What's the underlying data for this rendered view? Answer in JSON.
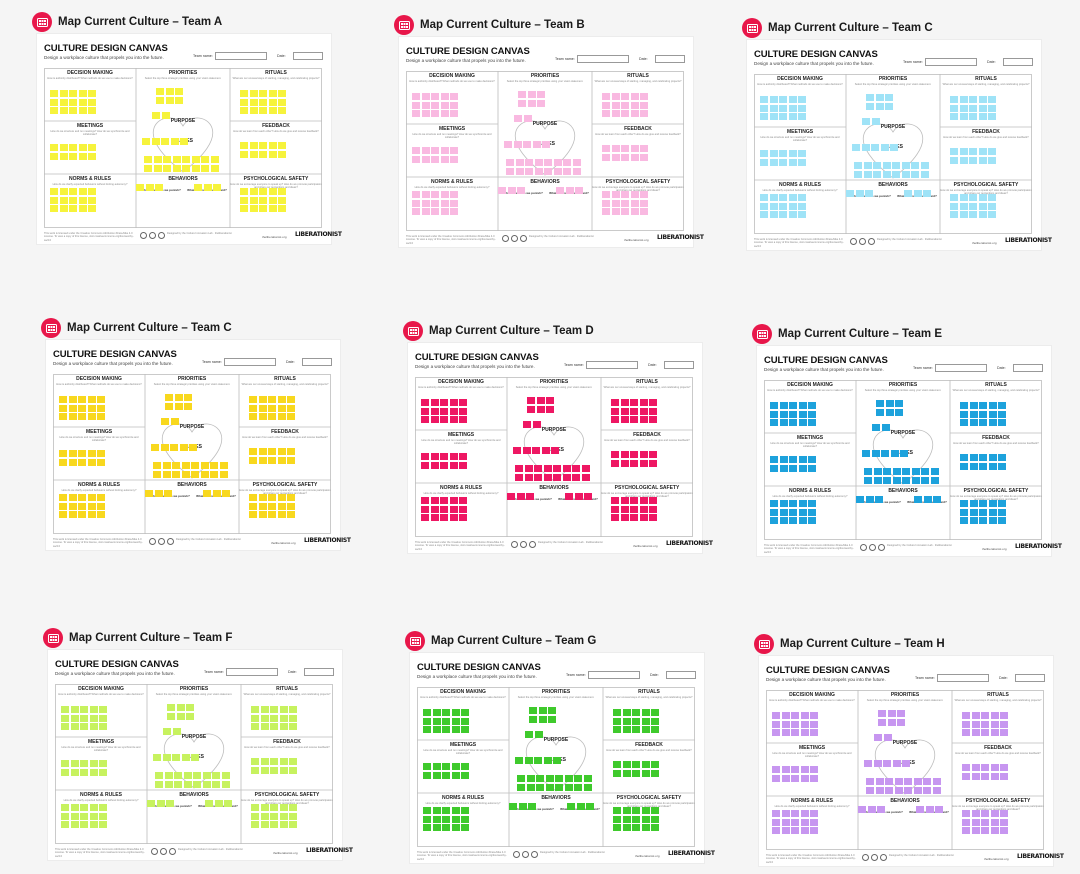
{
  "canvas_template": {
    "title": "CULTURE DESIGN CANVAS",
    "subtitle": "Design a workplace culture that propels you into the future.",
    "team_name_label": "Team name:",
    "date_label": "Date:",
    "sections": {
      "decision_making": {
        "title": "DECISION MAKING",
        "hint": "How is authority distributed? What methods do we use to make decisions?"
      },
      "priorities": {
        "title": "PRIORITIES",
        "hint": "Select the top three strategic priorities using your vision statement."
      },
      "rituals": {
        "title": "RITUALS",
        "hint": "What are our unusual ways of starting, managing, and celebrating projects?"
      },
      "meetings": {
        "title": "MEETINGS",
        "hint": "How do we structure and run meetings? How do we synchronize and collaborate?"
      },
      "purpose": {
        "title": "PURPOSE",
        "hint": "Why do we exist?"
      },
      "values": {
        "title": "VALUES",
        "hint": "What do we stand for?"
      },
      "feedback": {
        "title": "FEEDBACK",
        "hint": "How do we learn from each other? How do we give and receive feedback?"
      },
      "norms_rules": {
        "title": "NORMS & RULES",
        "hint": "How do we clarify expected behaviors without limiting autonomy?"
      },
      "behaviors": {
        "title": "BEHAVIORS",
        "hint": ""
      },
      "behaviors_punish": {
        "title": "What behaviors we punish?"
      },
      "behaviors_reward": {
        "title": "What behaviors we reward?"
      },
      "psych_safety": {
        "title": "PSYCHOLOGICAL SAFETY",
        "hint": "How do we encourage everyone to speak up? How do we promote participation and share our perceptions and ideas?"
      }
    },
    "footer_text": "This work is licensed under the Creative Commons Attribution-ShareAlike 4.0 License. To view a copy of this license, visit creativecommons.org/licenses/by-sa/4.0",
    "footer_mid": "Designed by the Culture Innovation Lab · theliberationist",
    "footer_url": "theliberationist.org",
    "logo_text": "LIBERATIONIST"
  },
  "boards": [
    {
      "title": "Map Current Culture – Team A",
      "color": "#f6f33c"
    },
    {
      "title": "Map Current Culture – Team B",
      "color": "#f9b9e1"
    },
    {
      "title": "Map Current Culture – Team C",
      "color": "#9fe3f7"
    },
    {
      "title": "Map Current Culture – Team C",
      "color": "#f8d81e"
    },
    {
      "title": "Map Current Culture – Team D",
      "color": "#ee1763"
    },
    {
      "title": "Map Current Culture – Team E",
      "color": "#1da2dc"
    },
    {
      "title": "Map Current Culture – Team F",
      "color": "#c7f25f"
    },
    {
      "title": "Map Current Culture – Team G",
      "color": "#3fca2c"
    },
    {
      "title": "Map Current Culture – Team H",
      "color": "#c796f0"
    }
  ],
  "icon": "board-icon",
  "accent_color": "#e8174a"
}
